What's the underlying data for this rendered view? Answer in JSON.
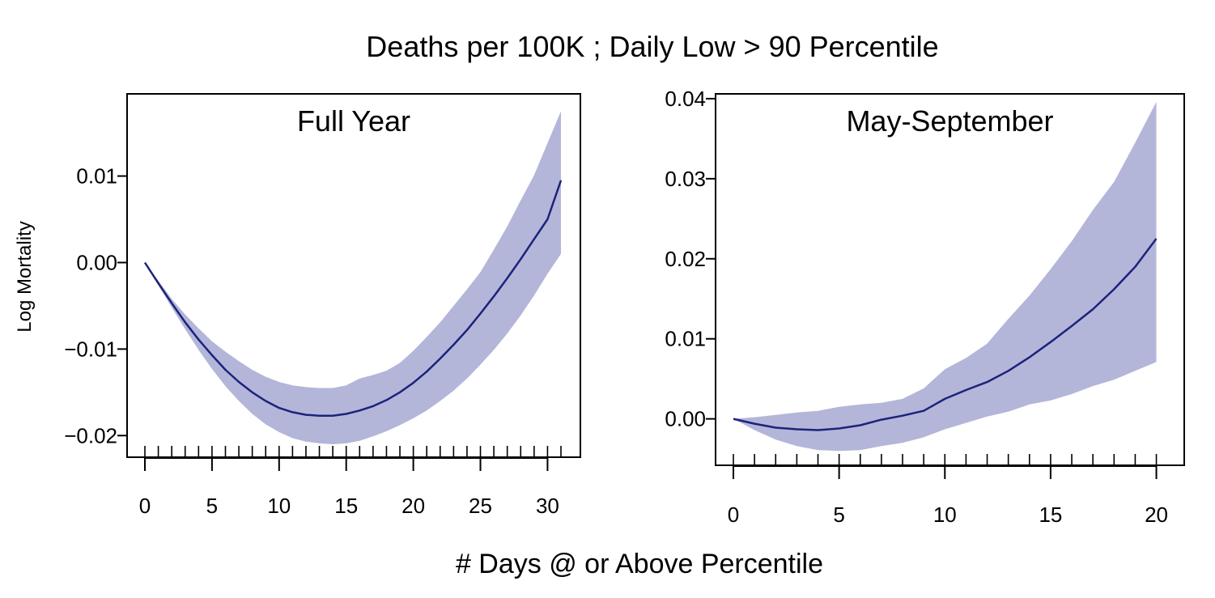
{
  "figure": {
    "title": "Deaths per 100K ; Daily Low > 90 Percentile",
    "xlabel": "# Days @ or Above Percentile"
  },
  "chart_data": [
    {
      "type": "line",
      "title": "Full Year",
      "ylabel": "Log Mortality",
      "xlim": [
        0,
        31
      ],
      "ylim": [
        -0.0225,
        0.0195
      ],
      "xticks": [
        0,
        5,
        10,
        15,
        20,
        25,
        30
      ],
      "xtick_labels": [
        "0",
        "5",
        "10",
        "15",
        "20",
        "25",
        "30"
      ],
      "yticks": [
        -0.02,
        -0.01,
        0.0,
        0.01
      ],
      "ytick_labels": [
        "−0.02",
        "−0.01",
        "0.00",
        "0.01"
      ],
      "rug": [
        0,
        1,
        2,
        3,
        4,
        5,
        6,
        7,
        8,
        9,
        10,
        11,
        12,
        13,
        14,
        15,
        16,
        17,
        18,
        19,
        20,
        21,
        22,
        23,
        24,
        25,
        26,
        27,
        28,
        29,
        30,
        31
      ],
      "line_color": "#1b237a",
      "band_color": "#b3b6d9",
      "series": [
        {
          "x": [
            0,
            1,
            2,
            3,
            4,
            5,
            6,
            7,
            8,
            9,
            10,
            11,
            12,
            13,
            14,
            15,
            16,
            17,
            18,
            19,
            20,
            21,
            22,
            23,
            24,
            25,
            26,
            27,
            28,
            29,
            30,
            31
          ],
          "y": [
            0.0,
            -0.0024,
            -0.0047,
            -0.0069,
            -0.0089,
            -0.0107,
            -0.0124,
            -0.0138,
            -0.015,
            -0.016,
            -0.0168,
            -0.0173,
            -0.0176,
            -0.0177,
            -0.0177,
            -0.0175,
            -0.0171,
            -0.0166,
            -0.0159,
            -0.015,
            -0.0139,
            -0.0126,
            -0.0111,
            -0.0095,
            -0.0078,
            -0.0059,
            -0.0039,
            -0.0018,
            0.0004,
            0.0027,
            0.005,
            0.0095
          ],
          "lower": [
            0.0,
            -0.0026,
            -0.0052,
            -0.0077,
            -0.0101,
            -0.0123,
            -0.0143,
            -0.016,
            -0.0175,
            -0.0187,
            -0.0196,
            -0.0203,
            -0.0207,
            -0.0209,
            -0.021,
            -0.0209,
            -0.0206,
            -0.0201,
            -0.0195,
            -0.0188,
            -0.018,
            -0.0171,
            -0.016,
            -0.0148,
            -0.0134,
            -0.0118,
            -0.0101,
            -0.0082,
            -0.0061,
            -0.0038,
            -0.0013,
            0.001
          ],
          "upper": [
            0.0,
            -0.0021,
            -0.0042,
            -0.006,
            -0.0076,
            -0.0091,
            -0.0103,
            -0.0114,
            -0.0124,
            -0.0132,
            -0.0138,
            -0.0142,
            -0.0144,
            -0.0145,
            -0.0145,
            -0.0142,
            -0.0134,
            -0.013,
            -0.0125,
            -0.0116,
            -0.0102,
            -0.0086,
            -0.0069,
            -0.005,
            -0.0031,
            -0.0011,
            0.0015,
            0.0042,
            0.0072,
            0.0101,
            0.0138,
            0.0175
          ]
        }
      ]
    },
    {
      "type": "line",
      "title": "May-September",
      "ylabel": "",
      "xlim": [
        0,
        20.4
      ],
      "ylim": [
        -0.0058,
        0.0406
      ],
      "xticks": [
        0,
        5,
        10,
        15,
        20
      ],
      "xtick_labels": [
        "0",
        "5",
        "10",
        "15",
        "20"
      ],
      "yticks": [
        0.0,
        0.01,
        0.02,
        0.03,
        0.04
      ],
      "ytick_labels": [
        "0.00",
        "0.01",
        "0.02",
        "0.03",
        "0.04"
      ],
      "rug": [
        0,
        1,
        2,
        3,
        4,
        5,
        6,
        7,
        8,
        9,
        10,
        11,
        12,
        13,
        14,
        15,
        16,
        17,
        18,
        19,
        20
      ],
      "line_color": "#1b237a",
      "band_color": "#b3b6d9",
      "series": [
        {
          "x": [
            0,
            1,
            2,
            3,
            4,
            5,
            6,
            7,
            8,
            9,
            10,
            11,
            12,
            13,
            14,
            15,
            16,
            17,
            18,
            19,
            20
          ],
          "y": [
            0.0,
            -0.0006,
            -0.0011,
            -0.0013,
            -0.0014,
            -0.0012,
            -0.0008,
            -0.0001,
            0.0004,
            0.001,
            0.0025,
            0.0036,
            0.0046,
            0.006,
            0.0077,
            0.0096,
            0.0116,
            0.0137,
            0.0162,
            0.019,
            0.0225
          ],
          "lower": [
            0.0,
            -0.0014,
            -0.0026,
            -0.0034,
            -0.0039,
            -0.004,
            -0.0039,
            -0.0034,
            -0.003,
            -0.0023,
            -0.0013,
            -0.0005,
            0.0003,
            0.0009,
            0.0018,
            0.0023,
            0.0031,
            0.0041,
            0.0049,
            0.006,
            0.0071
          ],
          "upper": [
            0.0,
            0.0002,
            0.0005,
            0.0008,
            0.001,
            0.0015,
            0.0018,
            0.002,
            0.0025,
            0.0038,
            0.0062,
            0.0076,
            0.0094,
            0.0125,
            0.0154,
            0.0187,
            0.0222,
            0.0261,
            0.0296,
            0.0345,
            0.0396
          ]
        }
      ]
    }
  ]
}
